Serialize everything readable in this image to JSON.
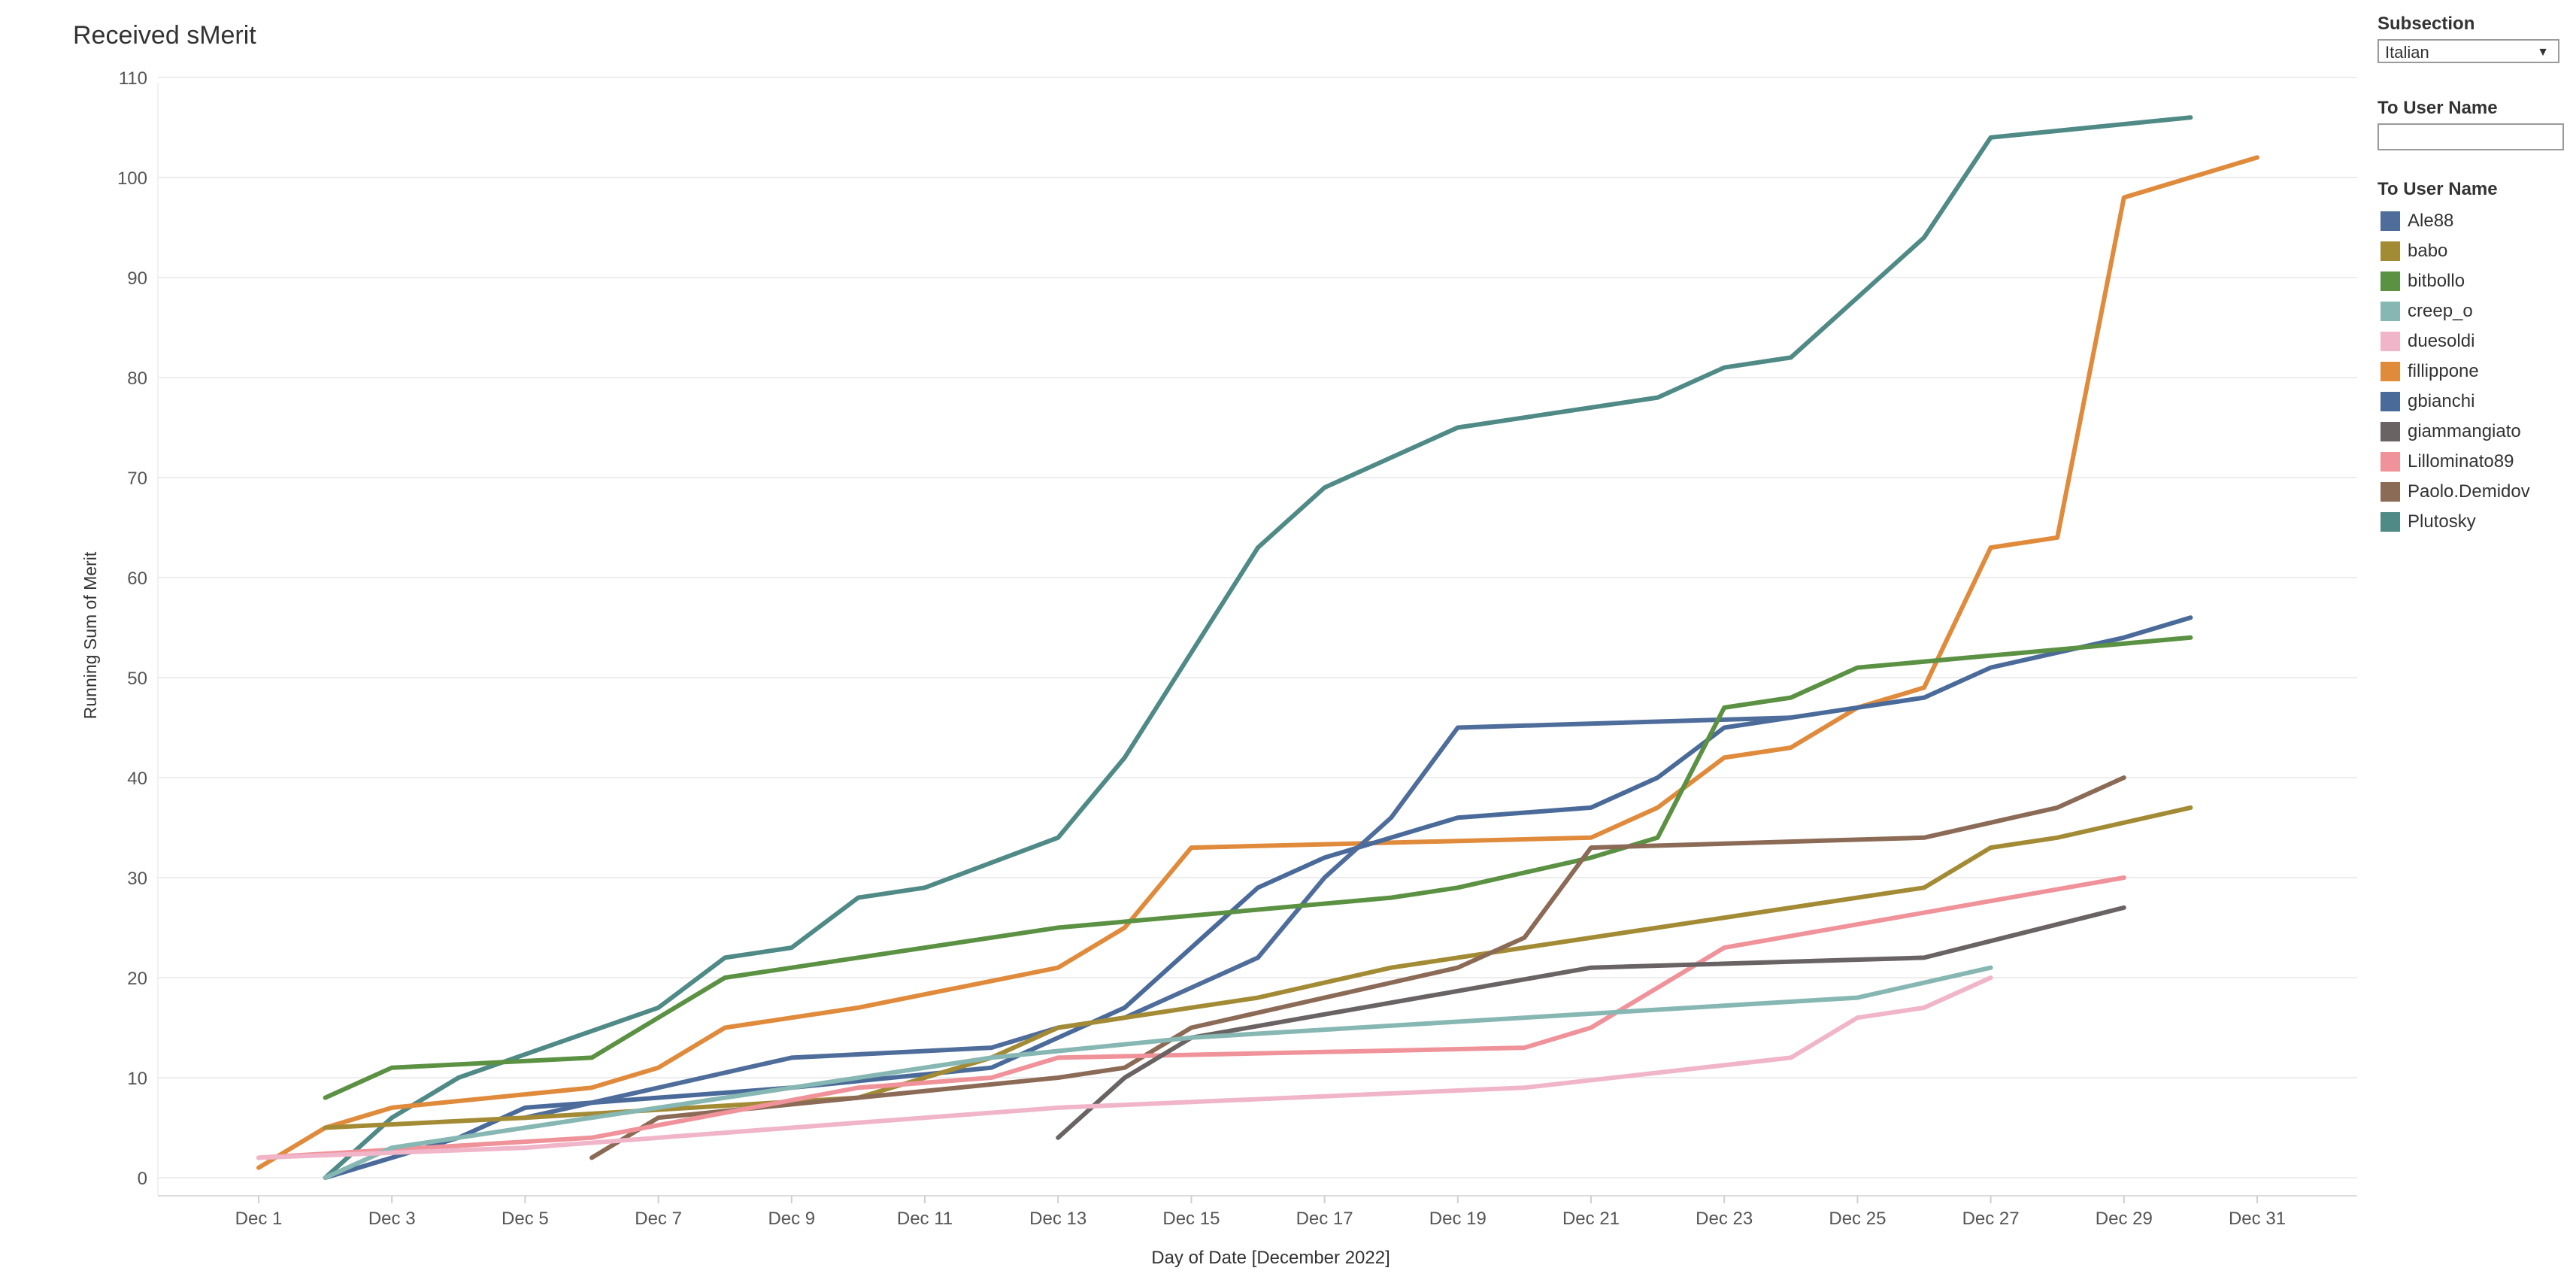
{
  "title": "Received sMerit",
  "filters": {
    "subsection_label": "Subsection",
    "subsection_value": "Italian",
    "user_filter_label": "To User Name",
    "user_filter_value": ""
  },
  "legend": {
    "title": "To User Name",
    "items": [
      {
        "name": "Ale88",
        "color": "#4e6d9b"
      },
      {
        "name": "babo",
        "color": "#a38b35"
      },
      {
        "name": "bitbollo",
        "color": "#5b9143"
      },
      {
        "name": "creep_o",
        "color": "#86b7b2"
      },
      {
        "name": "duesoldi",
        "color": "#f0b5c9"
      },
      {
        "name": "fillippone",
        "color": "#e08a3c"
      },
      {
        "name": "gbianchi",
        "color": "#4a6b99"
      },
      {
        "name": "giammangiato",
        "color": "#6a6363"
      },
      {
        "name": "Lillominato89",
        "color": "#f0929a"
      },
      {
        "name": "Paolo.Demidov",
        "color": "#8b6a56"
      },
      {
        "name": "Plutosky",
        "color": "#4f8a87"
      }
    ]
  },
  "chart_data": {
    "type": "line",
    "title": "Received sMerit",
    "xlabel": "Day of Date [December 2022]",
    "ylabel": "Running Sum of Merit",
    "x_ticks": [
      "Dec 1",
      "Dec 3",
      "Dec 5",
      "Dec 7",
      "Dec 9",
      "Dec 11",
      "Dec 13",
      "Dec 15",
      "Dec 17",
      "Dec 19",
      "Dec 21",
      "Dec 23",
      "Dec 25",
      "Dec 27",
      "Dec 29",
      "Dec 31"
    ],
    "y_ticks": [
      0,
      10,
      20,
      30,
      40,
      50,
      60,
      70,
      80,
      90,
      100,
      110
    ],
    "xlim": [
      "Dec 0",
      "Dec 33"
    ],
    "ylim": [
      -2,
      110
    ],
    "grid": "horizontal",
    "legend_position": "right",
    "series": [
      {
        "name": "Plutosky",
        "color": "#4f8a87",
        "points": [
          [
            "Dec 2",
            0
          ],
          [
            "Dec 3",
            6
          ],
          [
            "Dec 4",
            10
          ],
          [
            "Dec 7",
            17
          ],
          [
            "Dec 8",
            22
          ],
          [
            "Dec 9",
            23
          ],
          [
            "Dec 10",
            28
          ],
          [
            "Dec 11",
            29
          ],
          [
            "Dec 13",
            34
          ],
          [
            "Dec 14",
            42
          ],
          [
            "Dec 16",
            63
          ],
          [
            "Dec 17",
            69
          ],
          [
            "Dec 19",
            75
          ],
          [
            "Dec 22",
            78
          ],
          [
            "Dec 23",
            81
          ],
          [
            "Dec 24",
            82
          ],
          [
            "Dec 26",
            94
          ],
          [
            "Dec 27",
            104
          ],
          [
            "Dec 30",
            106
          ]
        ]
      },
      {
        "name": "fillippone",
        "color": "#e08a3c",
        "points": [
          [
            "Dec 1",
            1
          ],
          [
            "Dec 2",
            5
          ],
          [
            "Dec 3",
            7
          ],
          [
            "Dec 6",
            9
          ],
          [
            "Dec 7",
            11
          ],
          [
            "Dec 8",
            15
          ],
          [
            "Dec 10",
            17
          ],
          [
            "Dec 13",
            21
          ],
          [
            "Dec 14",
            25
          ],
          [
            "Dec 15",
            33
          ],
          [
            "Dec 21",
            34
          ],
          [
            "Dec 22",
            37
          ],
          [
            "Dec 23",
            42
          ],
          [
            "Dec 24",
            43
          ],
          [
            "Dec 25",
            47
          ],
          [
            "Dec 26",
            49
          ],
          [
            "Dec 27",
            63
          ],
          [
            "Dec 28",
            64
          ],
          [
            "Dec 29",
            98
          ],
          [
            "Dec 31",
            102
          ]
        ]
      },
      {
        "name": "gbianchi",
        "color": "#4a6b99",
        "points": [
          [
            "Dec 2",
            0
          ],
          [
            "Dec 4",
            4
          ],
          [
            "Dec 5",
            7
          ],
          [
            "Dec 9",
            9
          ],
          [
            "Dec 12",
            11
          ],
          [
            "Dec 13",
            14
          ],
          [
            "Dec 14",
            17
          ],
          [
            "Dec 16",
            29
          ],
          [
            "Dec 17",
            32
          ],
          [
            "Dec 18",
            34
          ],
          [
            "Dec 19",
            36
          ],
          [
            "Dec 21",
            37
          ],
          [
            "Dec 22",
            40
          ],
          [
            "Dec 23",
            45
          ],
          [
            "Dec 24",
            46
          ],
          [
            "Dec 26",
            48
          ],
          [
            "Dec 27",
            51
          ],
          [
            "Dec 29",
            54
          ],
          [
            "Dec 30",
            56
          ]
        ]
      },
      {
        "name": "Ale88",
        "color": "#4e6d9b",
        "points": [
          [
            "Dec 5",
            6
          ],
          [
            "Dec 9",
            12
          ],
          [
            "Dec 12",
            13
          ],
          [
            "Dec 13",
            15
          ],
          [
            "Dec 14",
            16
          ],
          [
            "Dec 16",
            22
          ],
          [
            "Dec 17",
            30
          ],
          [
            "Dec 18",
            36
          ],
          [
            "Dec 19",
            45
          ],
          [
            "Dec 24",
            46
          ]
        ]
      },
      {
        "name": "bitbollo",
        "color": "#5b9143",
        "points": [
          [
            "Dec 2",
            8
          ],
          [
            "Dec 3",
            11
          ],
          [
            "Dec 6",
            12
          ],
          [
            "Dec 7",
            16
          ],
          [
            "Dec 8",
            20
          ],
          [
            "Dec 13",
            25
          ],
          [
            "Dec 18",
            28
          ],
          [
            "Dec 19",
            29
          ],
          [
            "Dec 21",
            32
          ],
          [
            "Dec 22",
            34
          ],
          [
            "Dec 23",
            47
          ],
          [
            "Dec 24",
            48
          ],
          [
            "Dec 25",
            51
          ],
          [
            "Dec 30",
            54
          ]
        ]
      },
      {
        "name": "babo",
        "color": "#a38b35",
        "points": [
          [
            "Dec 2",
            5
          ],
          [
            "Dec 5",
            6
          ],
          [
            "Dec 10",
            8
          ],
          [
            "Dec 11",
            10
          ],
          [
            "Dec 12",
            12
          ],
          [
            "Dec 13",
            15
          ],
          [
            "Dec 16",
            18
          ],
          [
            "Dec 18",
            21
          ],
          [
            "Dec 20",
            23
          ],
          [
            "Dec 22",
            25
          ],
          [
            "Dec 26",
            29
          ],
          [
            "Dec 27",
            33
          ],
          [
            "Dec 28",
            34
          ],
          [
            "Dec 30",
            37
          ]
        ]
      },
      {
        "name": "Paolo.Demidov",
        "color": "#8b6a56",
        "points": [
          [
            "Dec 6",
            2
          ],
          [
            "Dec 7",
            6
          ],
          [
            "Dec 10",
            8
          ],
          [
            "Dec 13",
            10
          ],
          [
            "Dec 14",
            11
          ],
          [
            "Dec 15",
            15
          ],
          [
            "Dec 19",
            21
          ],
          [
            "Dec 20",
            24
          ],
          [
            "Dec 21",
            33
          ],
          [
            "Dec 26",
            34
          ],
          [
            "Dec 28",
            37
          ],
          [
            "Dec 29",
            40
          ]
        ]
      },
      {
        "name": "Lillominato89",
        "color": "#f0929a",
        "points": [
          [
            "Dec 1",
            2
          ],
          [
            "Dec 6",
            4
          ],
          [
            "Dec 10",
            9
          ],
          [
            "Dec 12",
            10
          ],
          [
            "Dec 13",
            12
          ],
          [
            "Dec 20",
            13
          ],
          [
            "Dec 21",
            15
          ],
          [
            "Dec 22",
            19
          ],
          [
            "Dec 23",
            23
          ],
          [
            "Dec 29",
            30
          ]
        ]
      },
      {
        "name": "giammangiato",
        "color": "#6a6363",
        "points": [
          [
            "Dec 13",
            4
          ],
          [
            "Dec 14",
            10
          ],
          [
            "Dec 15",
            14
          ],
          [
            "Dec 21",
            21
          ],
          [
            "Dec 26",
            22
          ],
          [
            "Dec 29",
            27
          ]
        ]
      },
      {
        "name": "creep_o",
        "color": "#86b7b2",
        "points": [
          [
            "Dec 2",
            0
          ],
          [
            "Dec 3",
            3
          ],
          [
            "Dec 5",
            5
          ],
          [
            "Dec 9",
            9
          ],
          [
            "Dec 12",
            12
          ],
          [
            "Dec 15",
            14
          ],
          [
            "Dec 25",
            18
          ],
          [
            "Dec 27",
            21
          ]
        ]
      },
      {
        "name": "duesoldi",
        "color": "#f0b5c9",
        "points": [
          [
            "Dec 1",
            2
          ],
          [
            "Dec 5",
            3
          ],
          [
            "Dec 9",
            5
          ],
          [
            "Dec 13",
            7
          ],
          [
            "Dec 20",
            9
          ],
          [
            "Dec 24",
            12
          ],
          [
            "Dec 25",
            16
          ],
          [
            "Dec 26",
            17
          ],
          [
            "Dec 27",
            20
          ]
        ]
      }
    ]
  }
}
